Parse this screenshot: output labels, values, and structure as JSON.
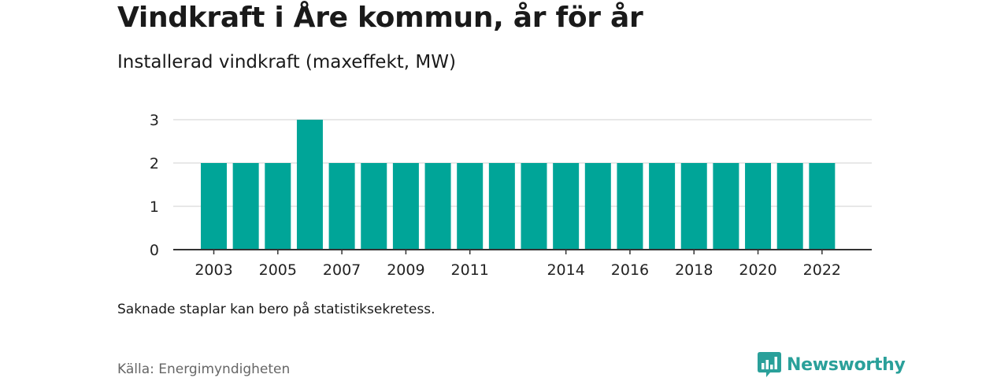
{
  "header": {
    "title": "Vindkraft i Åre kommun, år för år",
    "subtitle": "Installerad vindkraft (maxeffekt, MW)"
  },
  "footer": {
    "note": "Saknade staplar kan bero på statistiksekretess.",
    "source": "Källa: Energimyndigheten",
    "brand": "Newsworthy",
    "brand_icon": "bar-chart-logo-icon"
  },
  "colors": {
    "bar": "#00a598",
    "grid": "#d9d9d9",
    "axis": "#333333",
    "brand": "#2aa09a"
  },
  "chart_data": {
    "type": "bar",
    "categories": [
      "2003",
      "2004",
      "2005",
      "2006",
      "2007",
      "2008",
      "2009",
      "2010",
      "2011",
      "2012",
      "2013",
      "2014",
      "2015",
      "2016",
      "2017",
      "2018",
      "2019",
      "2020",
      "2021",
      "2022"
    ],
    "values": [
      2,
      2,
      2,
      3,
      2,
      2,
      2,
      2,
      2,
      2,
      2,
      2,
      2,
      2,
      2,
      2,
      2,
      2,
      2,
      2
    ],
    "x_tick_labels": [
      "2003",
      "2005",
      "2007",
      "2009",
      "2011",
      "2014",
      "2016",
      "2018",
      "2020",
      "2022"
    ],
    "y_ticks": [
      0,
      1,
      2,
      3
    ],
    "ylim": [
      0,
      3
    ],
    "xlabel": "",
    "ylabel": "",
    "grid": true
  }
}
